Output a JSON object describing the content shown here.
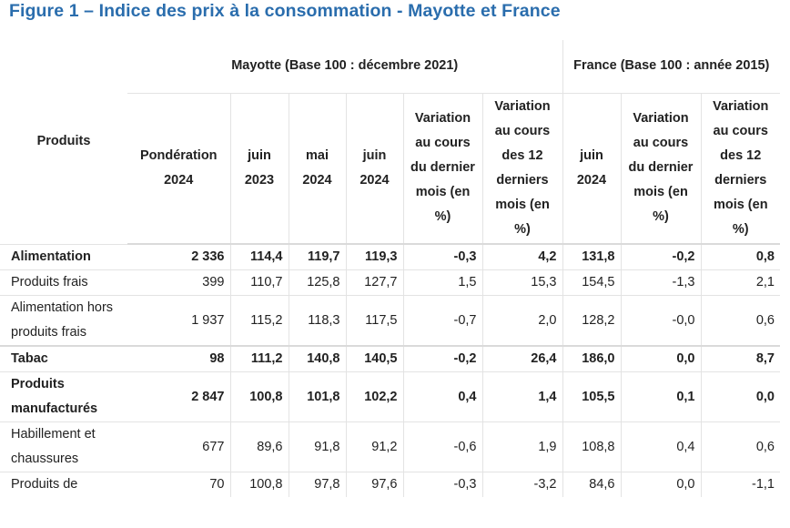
{
  "title": "Figure 1 – Indice des prix à la consommation - Mayotte et France",
  "header": {
    "group_mayotte": "Mayotte (Base 100 : décembre 2021)",
    "group_france": "France (Base 100 : année 2015)",
    "col_produits": "Produits",
    "col_ponderation": "Pondération 2024",
    "col_juin2023": "juin 2023",
    "col_mai2024": "mai 2024",
    "col_juin2024": "juin 2024",
    "col_var_mois": "Variation au cours du dernier mois (en %)",
    "col_var_12": "Variation au cours des 12 derniers mois (en %)",
    "col_fr_juin2024": "juin 2024",
    "col_fr_var_mois": "Variation au cours du dernier mois (en %)",
    "col_fr_var_12": "Variation au cours des 12 derniers mois (en %)"
  },
  "rows": [
    {
      "label": "Alimentation",
      "bold": true,
      "cells": [
        "2 336",
        "114,4",
        "119,7",
        "119,3",
        "-0,3",
        "4,2",
        "131,8",
        "-0,2",
        "0,8"
      ]
    },
    {
      "label": "Produits frais",
      "bold": false,
      "cells": [
        "399",
        "110,7",
        "125,8",
        "127,7",
        "1,5",
        "15,3",
        "154,5",
        "-1,3",
        "2,1"
      ]
    },
    {
      "label": "Alimentation hors produits frais",
      "bold": false,
      "cells": [
        "1 937",
        "115,2",
        "118,3",
        "117,5",
        "-0,7",
        "2,0",
        "128,2",
        "-0,0",
        "0,6"
      ]
    },
    {
      "label": "Tabac",
      "bold": true,
      "cells": [
        "98",
        "111,2",
        "140,8",
        "140,5",
        "-0,2",
        "26,4",
        "186,0",
        "0,0",
        "8,7"
      ]
    },
    {
      "label": "Produits manufacturés",
      "bold": true,
      "cells": [
        "2 847",
        "100,8",
        "101,8",
        "102,2",
        "0,4",
        "1,4",
        "105,5",
        "0,1",
        "0,0"
      ]
    },
    {
      "label": "Habillement et chaussures",
      "bold": false,
      "cells": [
        "677",
        "89,6",
        "91,8",
        "91,2",
        "-0,6",
        "1,9",
        "108,8",
        "0,4",
        "0,6"
      ]
    },
    {
      "label": "Produits de",
      "bold": false,
      "cells": [
        "70",
        "100,8",
        "97,8",
        "97,6",
        "-0,3",
        "-3,2",
        "84,6",
        "0,0",
        "-1,1"
      ]
    }
  ]
}
